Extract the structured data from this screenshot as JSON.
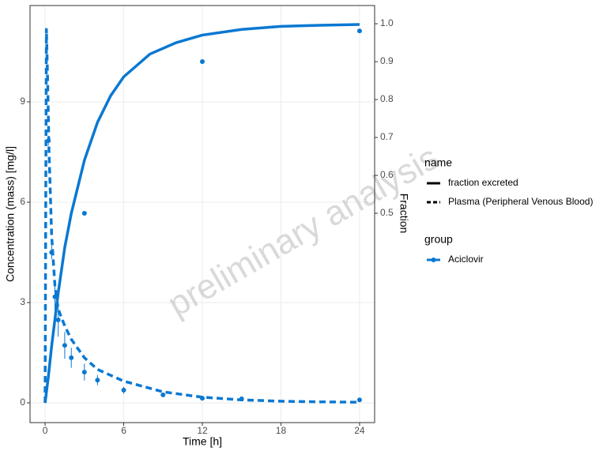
{
  "chart_data": {
    "type": "line",
    "x_label": "Time [h]",
    "y_label": "Concentration (mass) [mg/l]",
    "y2_label": "Fraction",
    "watermark": "preliminary analysis",
    "color": "#0a78d2",
    "grid": true,
    "xlim": [
      -1.15,
      25.15
    ],
    "xticks": [
      0,
      6,
      12,
      18,
      24
    ],
    "ylim": [
      -0.59,
      11.88
    ],
    "yticks": [
      0,
      3,
      6,
      9
    ],
    "y2lim": [
      -0.052,
      1.048
    ],
    "y2ticks": [
      0.5,
      0.6,
      0.7,
      0.8,
      0.9,
      {
        "value": 1,
        "label": "1.0"
      }
    ],
    "legend_title": "name",
    "group_title": "group",
    "group": "Aciclovir",
    "series": [
      {
        "name": "fraction excreted",
        "dash": "solid",
        "axis": "y2",
        "x": [
          0,
          0.25,
          0.5,
          1,
          1.5,
          2,
          3,
          4,
          5,
          6,
          8,
          10,
          12,
          15,
          18,
          21,
          24
        ],
        "values": [
          0,
          0.07,
          0.15,
          0.29,
          0.41,
          0.5,
          0.64,
          0.74,
          0.81,
          0.86,
          0.92,
          0.95,
          0.97,
          0.985,
          0.993,
          0.996,
          0.998
        ]
      },
      {
        "name": "Plasma (Peripheral Venous Blood)",
        "dash": "dashed",
        "axis": "y",
        "x": [
          0,
          0.05,
          0.1,
          0.2,
          0.3,
          0.5,
          0.75,
          1,
          1.5,
          2,
          3,
          4,
          6,
          9,
          12,
          15,
          18,
          21,
          24
        ],
        "values": [
          0,
          6,
          11.2,
          9.5,
          7.5,
          5.0,
          3.5,
          2.8,
          2.3,
          1.9,
          1.35,
          1.0,
          0.65,
          0.33,
          0.17,
          0.09,
          0.05,
          0.03,
          0.02
        ]
      }
    ],
    "observed": [
      {
        "axis": "y",
        "x": [
          0.25,
          0.5,
          0.75,
          1,
          1.5,
          2,
          3,
          4,
          6,
          9,
          12,
          15,
          24
        ],
        "values": [
          7.84,
          4.5,
          3.17,
          2.48,
          1.72,
          1.35,
          0.92,
          0.68,
          0.38,
          0.24,
          0.14,
          0.12,
          0.09
        ],
        "errors": [
          0.15,
          0.2,
          0.5,
          0.5,
          0.4,
          0.3,
          0.25,
          0.15,
          0.1,
          0.05,
          0.04,
          0.03,
          0.03
        ]
      },
      {
        "axis": "y2",
        "x": [
          3,
          12,
          24
        ],
        "values": [
          0.5,
          0.9,
          0.981
        ]
      }
    ]
  }
}
